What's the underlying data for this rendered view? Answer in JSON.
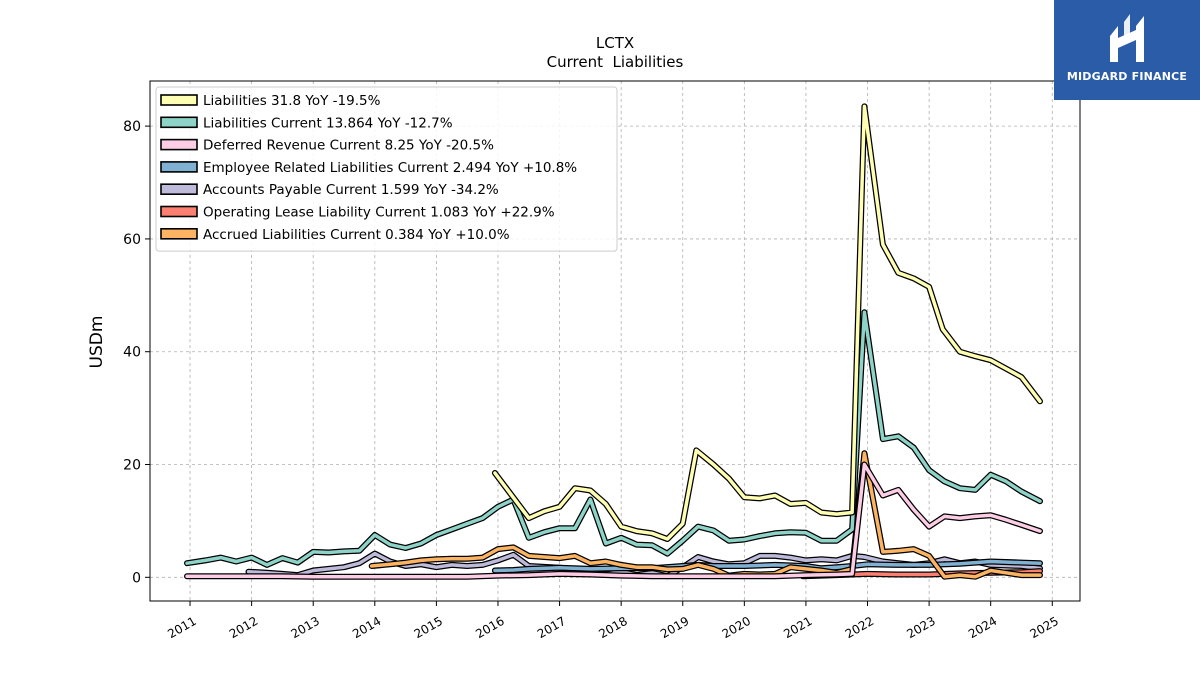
{
  "brand": {
    "name": "MIDGARD FINANCE"
  },
  "chart_data": {
    "type": "line",
    "title": "LCTX",
    "subtitle": "Current  Liabilities",
    "ylabel": "USDm",
    "xlabel": "",
    "xlim": [
      2010.35,
      2025.45
    ],
    "ylim": [
      -4.2,
      88
    ],
    "yticks": [
      0,
      20,
      40,
      60,
      80
    ],
    "xticks": [
      2011,
      2012,
      2013,
      2014,
      2015,
      2016,
      2017,
      2018,
      2019,
      2020,
      2021,
      2022,
      2023,
      2024,
      2025
    ],
    "grid": true,
    "legend_position": "top-left",
    "series": [
      {
        "name": "Liabilities",
        "legend": "Liabilities  31.8 YoY -19.5%",
        "color": "#ffffb3",
        "points": [
          [
            2015.95,
            18.5
          ],
          [
            2016.5,
            10.5
          ],
          [
            2016.75,
            11.7
          ],
          [
            2017.0,
            12.5
          ],
          [
            2017.25,
            15.8
          ],
          [
            2017.5,
            15.4
          ],
          [
            2017.75,
            13.0
          ],
          [
            2018.0,
            9.0
          ],
          [
            2018.25,
            8.2
          ],
          [
            2018.5,
            7.8
          ],
          [
            2018.75,
            6.8
          ],
          [
            2019.0,
            9.5
          ],
          [
            2019.22,
            22.5
          ],
          [
            2019.5,
            20.0
          ],
          [
            2019.75,
            17.5
          ],
          [
            2020.0,
            14.2
          ],
          [
            2020.25,
            14.0
          ],
          [
            2020.5,
            14.5
          ],
          [
            2020.75,
            13.0
          ],
          [
            2021.0,
            13.2
          ],
          [
            2021.25,
            11.5
          ],
          [
            2021.5,
            11.2
          ],
          [
            2021.75,
            11.5
          ],
          [
            2021.95,
            83.5
          ],
          [
            2022.25,
            59.0
          ],
          [
            2022.5,
            54.0
          ],
          [
            2022.75,
            53.0
          ],
          [
            2023.0,
            51.5
          ],
          [
            2023.22,
            44.0
          ],
          [
            2023.5,
            40.0
          ],
          [
            2023.75,
            39.2
          ],
          [
            2024.0,
            38.5
          ],
          [
            2024.25,
            37.0
          ],
          [
            2024.5,
            35.5
          ],
          [
            2024.8,
            31.2
          ]
        ]
      },
      {
        "name": "Liabilities Current",
        "legend": "Liabilities Current  13.864 YoY -12.7%",
        "color": "#8dd3c7",
        "points": [
          [
            2010.95,
            2.5
          ],
          [
            2011.25,
            3.0
          ],
          [
            2011.5,
            3.5
          ],
          [
            2011.75,
            2.8
          ],
          [
            2012.0,
            3.5
          ],
          [
            2012.25,
            2.2
          ],
          [
            2012.5,
            3.4
          ],
          [
            2012.75,
            2.6
          ],
          [
            2013.0,
            4.5
          ],
          [
            2013.25,
            4.4
          ],
          [
            2013.5,
            4.6
          ],
          [
            2013.75,
            4.7
          ],
          [
            2014.0,
            7.5
          ],
          [
            2014.25,
            5.8
          ],
          [
            2014.5,
            5.2
          ],
          [
            2014.75,
            6.0
          ],
          [
            2015.0,
            7.5
          ],
          [
            2015.25,
            8.5
          ],
          [
            2015.5,
            9.5
          ],
          [
            2015.75,
            10.5
          ],
          [
            2016.0,
            12.5
          ],
          [
            2016.25,
            13.8
          ],
          [
            2016.5,
            7.0
          ],
          [
            2016.75,
            8.0
          ],
          [
            2017.0,
            8.7
          ],
          [
            2017.25,
            8.7
          ],
          [
            2017.5,
            13.8
          ],
          [
            2017.75,
            6.0
          ],
          [
            2018.0,
            7.0
          ],
          [
            2018.25,
            5.8
          ],
          [
            2018.5,
            5.7
          ],
          [
            2018.75,
            4.2
          ],
          [
            2019.0,
            6.5
          ],
          [
            2019.25,
            9.0
          ],
          [
            2019.5,
            8.3
          ],
          [
            2019.75,
            6.5
          ],
          [
            2020.0,
            6.7
          ],
          [
            2020.25,
            7.3
          ],
          [
            2020.5,
            7.8
          ],
          [
            2020.75,
            8.0
          ],
          [
            2021.0,
            7.9
          ],
          [
            2021.25,
            6.5
          ],
          [
            2021.5,
            6.5
          ],
          [
            2021.75,
            8.5
          ],
          [
            2021.95,
            47.0
          ],
          [
            2022.25,
            24.5
          ],
          [
            2022.5,
            25.0
          ],
          [
            2022.75,
            23.0
          ],
          [
            2023.0,
            19.0
          ],
          [
            2023.25,
            17.0
          ],
          [
            2023.5,
            15.8
          ],
          [
            2023.75,
            15.5
          ],
          [
            2024.0,
            18.2
          ],
          [
            2024.25,
            17.0
          ],
          [
            2024.5,
            15.2
          ],
          [
            2024.8,
            13.5
          ]
        ]
      },
      {
        "name": "Deferred Revenue Current",
        "legend": "Deferred Revenue Current  8.25 YoY -20.5%",
        "color": "#fccde5",
        "points": [
          [
            2010.95,
            0.2
          ],
          [
            2011.5,
            0.2
          ],
          [
            2012.0,
            0.2
          ],
          [
            2012.5,
            0.2
          ],
          [
            2013.0,
            0.1
          ],
          [
            2013.5,
            0.1
          ],
          [
            2014.0,
            0.1
          ],
          [
            2014.5,
            0.1
          ],
          [
            2015.0,
            0.1
          ],
          [
            2015.5,
            0.1
          ],
          [
            2016.0,
            0.3
          ],
          [
            2016.5,
            0.4
          ],
          [
            2017.0,
            0.6
          ],
          [
            2017.5,
            0.5
          ],
          [
            2018.0,
            0.3
          ],
          [
            2018.5,
            0.2
          ],
          [
            2019.0,
            0.2
          ],
          [
            2019.5,
            0.2
          ],
          [
            2020.0,
            0.2
          ],
          [
            2020.5,
            0.2
          ],
          [
            2021.0,
            0.4
          ],
          [
            2021.5,
            0.5
          ],
          [
            2021.75,
            0.6
          ],
          [
            2021.95,
            20.0
          ],
          [
            2022.25,
            14.5
          ],
          [
            2022.5,
            15.5
          ],
          [
            2022.75,
            12.0
          ],
          [
            2023.0,
            9.0
          ],
          [
            2023.25,
            10.8
          ],
          [
            2023.5,
            10.5
          ],
          [
            2023.75,
            10.8
          ],
          [
            2024.0,
            11.0
          ],
          [
            2024.25,
            10.2
          ],
          [
            2024.5,
            9.3
          ],
          [
            2024.8,
            8.2
          ]
        ]
      },
      {
        "name": "Employee Related Liabilities Current",
        "legend": "Employee Related Liabilities Current  2.494 YoY +10.8%",
        "color": "#80b1d3",
        "points": [
          [
            2015.95,
            1.2
          ],
          [
            2016.25,
            1.3
          ],
          [
            2016.5,
            1.5
          ],
          [
            2017.0,
            1.7
          ],
          [
            2017.5,
            1.5
          ],
          [
            2018.0,
            1.6
          ],
          [
            2018.5,
            1.6
          ],
          [
            2019.0,
            2.0
          ],
          [
            2019.25,
            2.2
          ],
          [
            2019.5,
            2.0
          ],
          [
            2020.0,
            2.0
          ],
          [
            2020.5,
            2.2
          ],
          [
            2021.0,
            2.0
          ],
          [
            2021.25,
            1.6
          ],
          [
            2021.5,
            1.8
          ],
          [
            2021.75,
            2.0
          ],
          [
            2022.0,
            2.3
          ],
          [
            2022.5,
            2.2
          ],
          [
            2023.0,
            2.2
          ],
          [
            2023.5,
            2.4
          ],
          [
            2024.0,
            2.8
          ],
          [
            2024.5,
            2.6
          ],
          [
            2024.8,
            2.5
          ]
        ]
      },
      {
        "name": "Accounts Payable Current",
        "legend": "Accounts Payable Current  1.599 YoY -34.2%",
        "color": "#bebada",
        "points": [
          [
            2011.95,
            1.0
          ],
          [
            2012.25,
            0.8
          ],
          [
            2012.5,
            0.6
          ],
          [
            2012.75,
            0.4
          ],
          [
            2013.0,
            1.2
          ],
          [
            2013.5,
            1.8
          ],
          [
            2013.75,
            2.5
          ],
          [
            2014.0,
            4.2
          ],
          [
            2014.25,
            2.8
          ],
          [
            2014.5,
            2.0
          ],
          [
            2014.75,
            2.3
          ],
          [
            2015.0,
            1.8
          ],
          [
            2015.25,
            2.2
          ],
          [
            2015.5,
            2.0
          ],
          [
            2015.75,
            2.2
          ],
          [
            2016.0,
            3.0
          ],
          [
            2016.25,
            4.0
          ],
          [
            2016.5,
            2.0
          ],
          [
            2017.0,
            1.7
          ],
          [
            2017.5,
            0.8
          ],
          [
            2017.75,
            0.5
          ],
          [
            2018.0,
            1.0
          ],
          [
            2018.25,
            0.4
          ],
          [
            2018.5,
            0.8
          ],
          [
            2018.75,
            0.2
          ],
          [
            2019.0,
            1.8
          ],
          [
            2019.25,
            3.6
          ],
          [
            2019.5,
            2.8
          ],
          [
            2019.75,
            2.3
          ],
          [
            2020.0,
            2.5
          ],
          [
            2020.25,
            3.8
          ],
          [
            2020.5,
            3.8
          ],
          [
            2020.75,
            3.5
          ],
          [
            2021.0,
            3.0
          ],
          [
            2021.25,
            3.2
          ],
          [
            2021.5,
            3.0
          ],
          [
            2021.75,
            3.8
          ],
          [
            2021.95,
            3.6
          ],
          [
            2022.25,
            2.8
          ],
          [
            2022.5,
            2.5
          ],
          [
            2022.75,
            2.2
          ],
          [
            2023.0,
            2.5
          ],
          [
            2023.25,
            3.2
          ],
          [
            2023.5,
            2.5
          ],
          [
            2023.75,
            2.8
          ],
          [
            2024.0,
            2.2
          ],
          [
            2024.5,
            2.0
          ],
          [
            2024.8,
            1.6
          ]
        ]
      },
      {
        "name": "Operating Lease Liability Current",
        "legend": "Operating Lease Liability Current  1.083 YoY +22.9%",
        "color": "#fb8072",
        "points": [
          [
            2020.95,
            0.2
          ],
          [
            2021.25,
            0.3
          ],
          [
            2021.5,
            0.4
          ],
          [
            2021.75,
            0.5
          ],
          [
            2022.0,
            0.6
          ],
          [
            2022.5,
            0.5
          ],
          [
            2023.0,
            0.5
          ],
          [
            2023.5,
            0.7
          ],
          [
            2024.0,
            0.8
          ],
          [
            2024.5,
            0.9
          ],
          [
            2024.8,
            1.1
          ]
        ]
      },
      {
        "name": "Accrued Liabilities Current",
        "legend": "Accrued Liabilities Current  0.384 YoY +10.0%",
        "color": "#fdb462",
        "points": [
          [
            2013.95,
            2.0
          ],
          [
            2014.25,
            2.3
          ],
          [
            2014.5,
            2.6
          ],
          [
            2014.75,
            3.0
          ],
          [
            2015.0,
            3.2
          ],
          [
            2015.25,
            3.3
          ],
          [
            2015.5,
            3.3
          ],
          [
            2015.75,
            3.5
          ],
          [
            2016.0,
            5.0
          ],
          [
            2016.25,
            5.3
          ],
          [
            2016.5,
            3.8
          ],
          [
            2016.75,
            3.6
          ],
          [
            2017.0,
            3.4
          ],
          [
            2017.25,
            3.8
          ],
          [
            2017.5,
            2.5
          ],
          [
            2017.75,
            2.8
          ],
          [
            2018.0,
            2.2
          ],
          [
            2018.25,
            1.8
          ],
          [
            2018.5,
            1.8
          ],
          [
            2018.75,
            1.4
          ],
          [
            2019.0,
            1.5
          ],
          [
            2019.25,
            2.2
          ],
          [
            2019.5,
            1.5
          ],
          [
            2019.75,
            0.3
          ],
          [
            2020.0,
            0.6
          ],
          [
            2020.25,
            0.5
          ],
          [
            2020.5,
            0.6
          ],
          [
            2020.75,
            1.8
          ],
          [
            2021.0,
            1.5
          ],
          [
            2021.25,
            1.2
          ],
          [
            2021.5,
            0.8
          ],
          [
            2021.75,
            1.5
          ],
          [
            2021.95,
            22.0
          ],
          [
            2022.25,
            4.5
          ],
          [
            2022.5,
            4.7
          ],
          [
            2022.75,
            5.0
          ],
          [
            2023.0,
            3.8
          ],
          [
            2023.25,
            0.1
          ],
          [
            2023.5,
            0.4
          ],
          [
            2023.75,
            0.1
          ],
          [
            2024.0,
            1.2
          ],
          [
            2024.25,
            0.8
          ],
          [
            2024.5,
            0.4
          ],
          [
            2024.8,
            0.4
          ]
        ]
      }
    ]
  }
}
